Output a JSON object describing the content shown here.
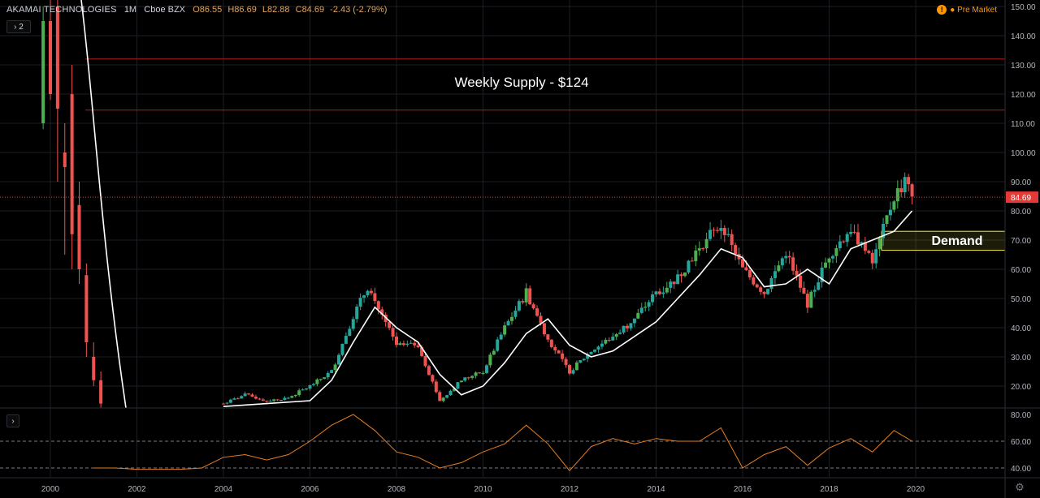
{
  "header": {
    "symbol": "AKAMAI TECHNOLOGIES",
    "interval": "1M",
    "exchange": "Cboe BZX",
    "open_label": "O",
    "open": "86.55",
    "high_label": "H",
    "high": "86.69",
    "low_label": "L",
    "low": "82.88",
    "close_label": "C",
    "close": "84.69",
    "change": "-2.43 (-2.79%)"
  },
  "toggle_label": "› 2",
  "toggle2_label": "›",
  "premarket": {
    "icon": "!",
    "label": "● Pre Market"
  },
  "colors": {
    "up": "#26a69a",
    "up_bright": "#4caf50",
    "down": "#ef5350",
    "ma": "#ffffff",
    "rsi": "#e67e22",
    "zone_red": "#b71c1c",
    "demand": "#f2e64c"
  },
  "chart_data": [
    {
      "type": "candlestick",
      "title": "AKAMAI TECHNOLOGIES",
      "y_ticks": [
        "150.00",
        "140.00",
        "130.00",
        "120.00",
        "110.00",
        "100.00",
        "90.00",
        "80.00",
        "70.00",
        "60.00",
        "50.00",
        "40.00",
        "30.00",
        "20.00"
      ],
      "ylim": [
        13,
        152
      ],
      "x_ticks": [
        "2000",
        "2002",
        "2004",
        "2006",
        "2008",
        "2010",
        "2012",
        "2014",
        "2016",
        "2018",
        "2020"
      ],
      "last_price_label": "84.69",
      "annotations": {
        "supply_text": "Weekly Supply - $124",
        "supply_zone": [
          114.5,
          132
        ],
        "demand_text": "Demand",
        "demand_zone": [
          66.5,
          73
        ]
      },
      "ohlc": [
        [
          "1999-11",
          110,
          150,
          108,
          145
        ],
        [
          "2000-01",
          145,
          155,
          118,
          120
        ],
        [
          "2000-03",
          150,
          160,
          90,
          115
        ],
        [
          "2000-05",
          100,
          110,
          65,
          95
        ],
        [
          "2000-07",
          120,
          130,
          60,
          72
        ],
        [
          "2000-09",
          82,
          90,
          55,
          60
        ],
        [
          "2000-11",
          58,
          62,
          30,
          35
        ],
        [
          "2001-01",
          30,
          35,
          20,
          22
        ],
        [
          "2001-03",
          22,
          25,
          12,
          14
        ]
      ],
      "series": [
        {
          "name": "Close",
          "x": [
            "2004-01",
            "2004-07",
            "2005-01",
            "2005-07",
            "2006-01",
            "2006-07",
            "2007-01",
            "2007-05",
            "2007-09",
            "2008-01",
            "2008-07",
            "2009-01",
            "2009-07",
            "2010-01",
            "2010-07",
            "2011-01",
            "2011-07",
            "2012-01",
            "2012-07",
            "2013-01",
            "2013-07",
            "2014-01",
            "2014-07",
            "2015-01",
            "2015-07",
            "2016-01",
            "2016-07",
            "2017-01",
            "2017-07",
            "2018-01",
            "2018-07",
            "2019-01",
            "2019-07",
            "2019-10",
            "2019-12"
          ],
          "y": [
            14,
            17,
            15,
            16,
            20,
            25,
            44,
            54,
            44,
            34,
            34,
            15,
            22,
            25,
            40,
            52,
            36,
            25,
            32,
            37,
            43,
            52,
            57,
            68,
            75,
            60,
            52,
            66,
            48,
            65,
            74,
            62,
            85,
            90,
            84.69
          ]
        },
        {
          "name": "MA",
          "x": [
            "2004-01",
            "2005-01",
            "2006-01",
            "2006-07",
            "2007-01",
            "2007-07",
            "2008-01",
            "2008-07",
            "2009-01",
            "2009-07",
            "2010-01",
            "2010-07",
            "2011-01",
            "2011-07",
            "2012-01",
            "2012-07",
            "2013-01",
            "2013-07",
            "2014-01",
            "2014-07",
            "2015-01",
            "2015-07",
            "2016-01",
            "2016-07",
            "2017-01",
            "2017-07",
            "2018-01",
            "2018-07",
            "2019-01",
            "2019-07",
            "2019-12"
          ],
          "y": [
            13,
            14,
            15,
            22,
            35,
            47,
            40,
            35,
            24,
            17,
            20,
            28,
            38,
            43,
            34,
            30,
            32,
            37,
            42,
            50,
            58,
            67,
            64,
            54,
            55,
            60,
            55,
            67,
            70,
            73,
            80
          ]
        }
      ]
    },
    {
      "type": "line",
      "title": "",
      "y_ticks": [
        "80.00",
        "60.00",
        "40.00"
      ],
      "ylim": [
        35,
        82
      ],
      "levels": [
        60,
        40
      ],
      "series": [
        {
          "name": "RSI",
          "x": [
            "2001-01",
            "2001-07",
            "2002-01",
            "2002-07",
            "2003-01",
            "2003-07",
            "2004-01",
            "2004-07",
            "2005-01",
            "2005-07",
            "2006-01",
            "2006-07",
            "2007-01",
            "2007-07",
            "2008-01",
            "2008-07",
            "2009-01",
            "2009-07",
            "2010-01",
            "2010-07",
            "2011-01",
            "2011-07",
            "2012-01",
            "2012-07",
            "2013-01",
            "2013-07",
            "2014-01",
            "2014-07",
            "2015-01",
            "2015-07",
            "2016-01",
            "2016-07",
            "2017-01",
            "2017-07",
            "2018-01",
            "2018-07",
            "2019-01",
            "2019-07",
            "2019-12"
          ],
          "y": [
            40,
            40,
            39,
            39,
            39,
            40,
            48,
            50,
            46,
            50,
            60,
            72,
            80,
            68,
            52,
            48,
            40,
            44,
            52,
            58,
            72,
            58,
            38,
            56,
            62,
            58,
            62,
            60,
            60,
            70,
            40,
            50,
            56,
            42,
            55,
            62,
            52,
            68,
            60
          ]
        }
      ]
    }
  ]
}
